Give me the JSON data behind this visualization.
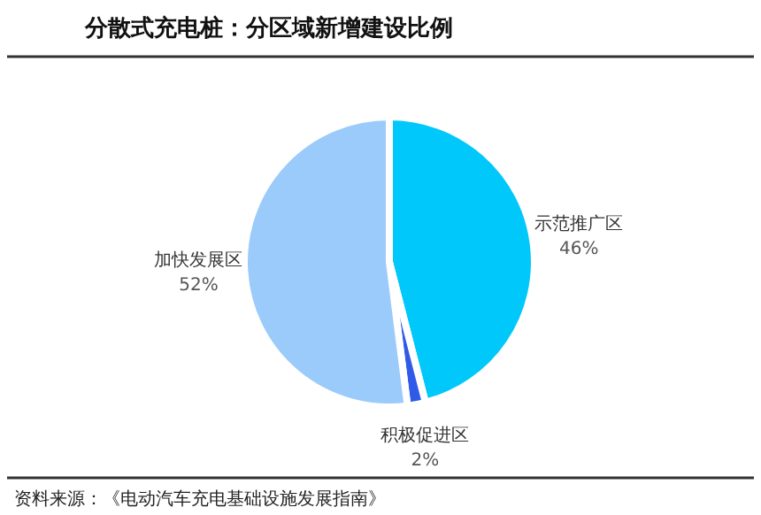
{
  "chart_data": {
    "type": "pie",
    "title": "分散式充电桩：分区域新增建设比例",
    "categories": [
      "示范推广区",
      "积极促进区",
      "加快发展区"
    ],
    "values": [
      46,
      2,
      52
    ],
    "value_labels": [
      "46%",
      "2%",
      "52%"
    ],
    "colors": [
      "#00c8fa",
      "#2f5be8",
      "#9acbfa"
    ],
    "annotations": [
      "资料来源：《电动汽车充电基础设施发展指南》"
    ],
    "legend": false
  }
}
